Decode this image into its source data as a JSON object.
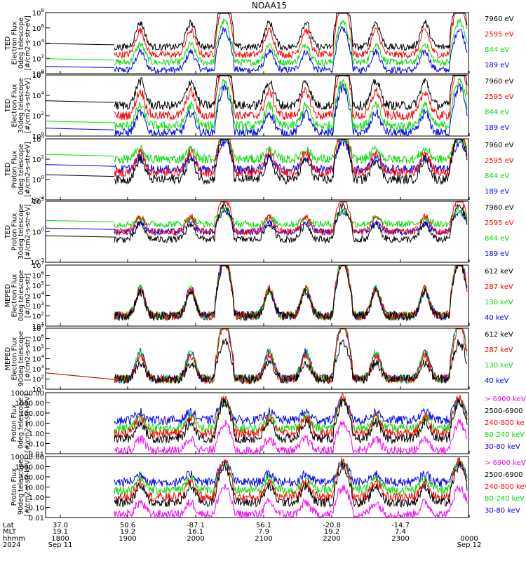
{
  "title": "NOAA15",
  "colors": {
    "blue": "#0000ff",
    "red": "#ff0000",
    "green": "#00e000",
    "black": "#000000",
    "magenta": "#ff00ff"
  },
  "chart_data": [
    {
      "type": "line",
      "scale": "log",
      "ylabel": [
        "TED",
        "Electron Flux",
        "0deg telescope",
        "[#/cm2-s-str-eV]"
      ],
      "ytick_labels": [
        "10^0",
        "10^2",
        "10^4",
        "10^6",
        "10^8"
      ],
      "ylim": [
        1,
        100000000
      ],
      "legend": [
        "7960 eV",
        "2595 eV",
        "844 eV",
        "189 eV"
      ],
      "legend_colors": [
        "black",
        "red",
        "green",
        "blue"
      ],
      "series_levels": [
        3000,
        300,
        30,
        3
      ],
      "peaks": [
        4,
        4,
        3,
        3
      ]
    },
    {
      "type": "line",
      "scale": "log",
      "ylabel": [
        "TED",
        "Electron Flux",
        "30deg telescope",
        "[#/cm2-s-str-eV]"
      ],
      "ytick_labels": [
        "10^0",
        "10^2",
        "10^4",
        "10^6"
      ],
      "ylim": [
        1,
        1000000
      ],
      "legend": [
        "7960 eV",
        "2595 eV",
        "844 eV",
        "189 eV"
      ],
      "legend_colors": [
        "black",
        "red",
        "green",
        "blue"
      ],
      "series_levels": [
        1000,
        100,
        10,
        2
      ],
      "peaks": [
        3,
        3,
        2.5,
        2.5
      ]
    },
    {
      "type": "line",
      "scale": "log",
      "ylabel": [
        "TED",
        "Proton Flux",
        "0deg telescope",
        "[#/cm2-s-str-eV]"
      ],
      "ytick_labels": [
        "10^-2",
        "10^0",
        "10^2",
        "10^4"
      ],
      "ylim": [
        0.01,
        10000
      ],
      "legend": [
        "7960 eV",
        "2595 eV",
        "844 eV",
        "189 eV"
      ],
      "legend_colors": [
        "black",
        "red",
        "green",
        "blue"
      ],
      "series_levels": [
        1,
        5,
        100,
        10
      ],
      "peaks": [
        2.5,
        2.5,
        1.2,
        1.5
      ]
    },
    {
      "type": "line",
      "scale": "log",
      "ylabel": [
        "TED",
        "Proton Flux",
        "30deg telescope",
        "[#/cm2-s-str-eV]"
      ],
      "ytick_labels": [
        "10^-3",
        "10^0",
        "10^3"
      ],
      "ylim": [
        0.001,
        100000
      ],
      "legend": [
        "7960 eV",
        "2595 eV",
        "844 eV",
        "189 eV"
      ],
      "legend_colors": [
        "black",
        "red",
        "green",
        "blue"
      ],
      "series_levels": [
        1,
        10,
        100,
        10
      ],
      "peaks": [
        2.5,
        2.5,
        1.0,
        1.5
      ]
    },
    {
      "type": "line",
      "scale": "log",
      "ylabel": [
        "MEPED",
        "Electron Flux",
        "0deg telescope",
        "[#/cm2-s-str]"
      ],
      "ytick_labels": [
        "10^1",
        "10^2",
        "10^3",
        "10^4",
        "10^5",
        "10^6",
        "10^7"
      ],
      "ylim": [
        10,
        10000000
      ],
      "legend": [
        "612 keV",
        "287 keV",
        "130 keV",
        "40 keV"
      ],
      "legend_colors": [
        "black",
        "red",
        "green",
        "blue"
      ],
      "series_levels": [
        100,
        100,
        100,
        100
      ],
      "peaks": [
        3,
        3.3,
        3.3,
        3.3
      ]
    },
    {
      "type": "line",
      "scale": "log",
      "ylabel": [
        "MEPED",
        "Electron Flux",
        "90deg telescope",
        "[#/cm2-s-str]"
      ],
      "ytick_labels": [
        "10^1",
        "10^2",
        "10^3",
        "10^4",
        "10^5",
        "10^6",
        "10^7"
      ],
      "ylim": [
        10,
        10000000
      ],
      "legend": [
        "612 keV",
        "287 keV",
        "130 keV",
        "40 keV"
      ],
      "legend_colors": [
        "black",
        "red",
        "green",
        "blue"
      ],
      "series_levels": [
        100,
        100,
        100,
        100
      ],
      "peaks": [
        2,
        3,
        3.3,
        3.3
      ]
    },
    {
      "type": "line",
      "scale": "log",
      "ylabel": [
        "Proton Flux",
        "0deg telescope",
        "[#/cm2-s-str-keV]"
      ],
      "ytick_labels": [
        "0.01",
        "0.10",
        "1.00",
        "10.00",
        "100.00",
        "1000.00",
        "10000.00"
      ],
      "ylim": [
        0.01,
        10000
      ],
      "legend": [
        "> 6900 keV",
        "2500-6900",
        "240-800 ke",
        "80-240 keV",
        "30-80 keV"
      ],
      "legend_colors": [
        "magenta",
        "black",
        "red",
        "green",
        "blue"
      ],
      "series_levels": [
        0.02,
        0.3,
        1,
        3,
        20
      ],
      "peaks": [
        1.5,
        2,
        2,
        1.5,
        1
      ]
    },
    {
      "type": "line",
      "scale": "log",
      "ylabel": [
        "Proton Flux",
        "90deg telescope",
        "[#/cm2-s-str-keV]"
      ],
      "ytick_labels": [
        "0.01",
        "0.10",
        "1.00",
        "10.00",
        "100.00",
        "1000.00",
        "10000.00"
      ],
      "ylim": [
        0.01,
        10000
      ],
      "legend": [
        "> 6900 keV",
        "2500-6900",
        "240-800 keV",
        "80-240 keV",
        "30-80 keV"
      ],
      "legend_colors": [
        "magenta",
        "black",
        "red",
        "green",
        "blue"
      ],
      "series_levels": [
        0.02,
        0.3,
        1,
        5,
        30
      ],
      "peaks": [
        1.5,
        2,
        2,
        1.5,
        1
      ]
    }
  ],
  "xaxis": {
    "row_labels": [
      "Lat",
      "MLT",
      "hhmm",
      "2024"
    ],
    "ticks": [
      {
        "lat": "37.0",
        "mlt": "19.1",
        "hhmm": "1800",
        "date": "Sep 11"
      },
      {
        "lat": "50.6",
        "mlt": "19.2",
        "hhmm": "1900",
        "date": ""
      },
      {
        "lat": "-87.1",
        "mlt": "16.1",
        "hhmm": "2000",
        "date": ""
      },
      {
        "lat": "56.1",
        "mlt": "7.9",
        "hhmm": "2100",
        "date": ""
      },
      {
        "lat": "-20.8",
        "mlt": "19.2",
        "hhmm": "2200",
        "date": ""
      },
      {
        "lat": "-14.7",
        "mlt": "7.4",
        "hhmm": "2300",
        "date": ""
      },
      {
        "lat": "",
        "mlt": "",
        "hhmm": "0000",
        "date": "Sep 12"
      }
    ]
  }
}
